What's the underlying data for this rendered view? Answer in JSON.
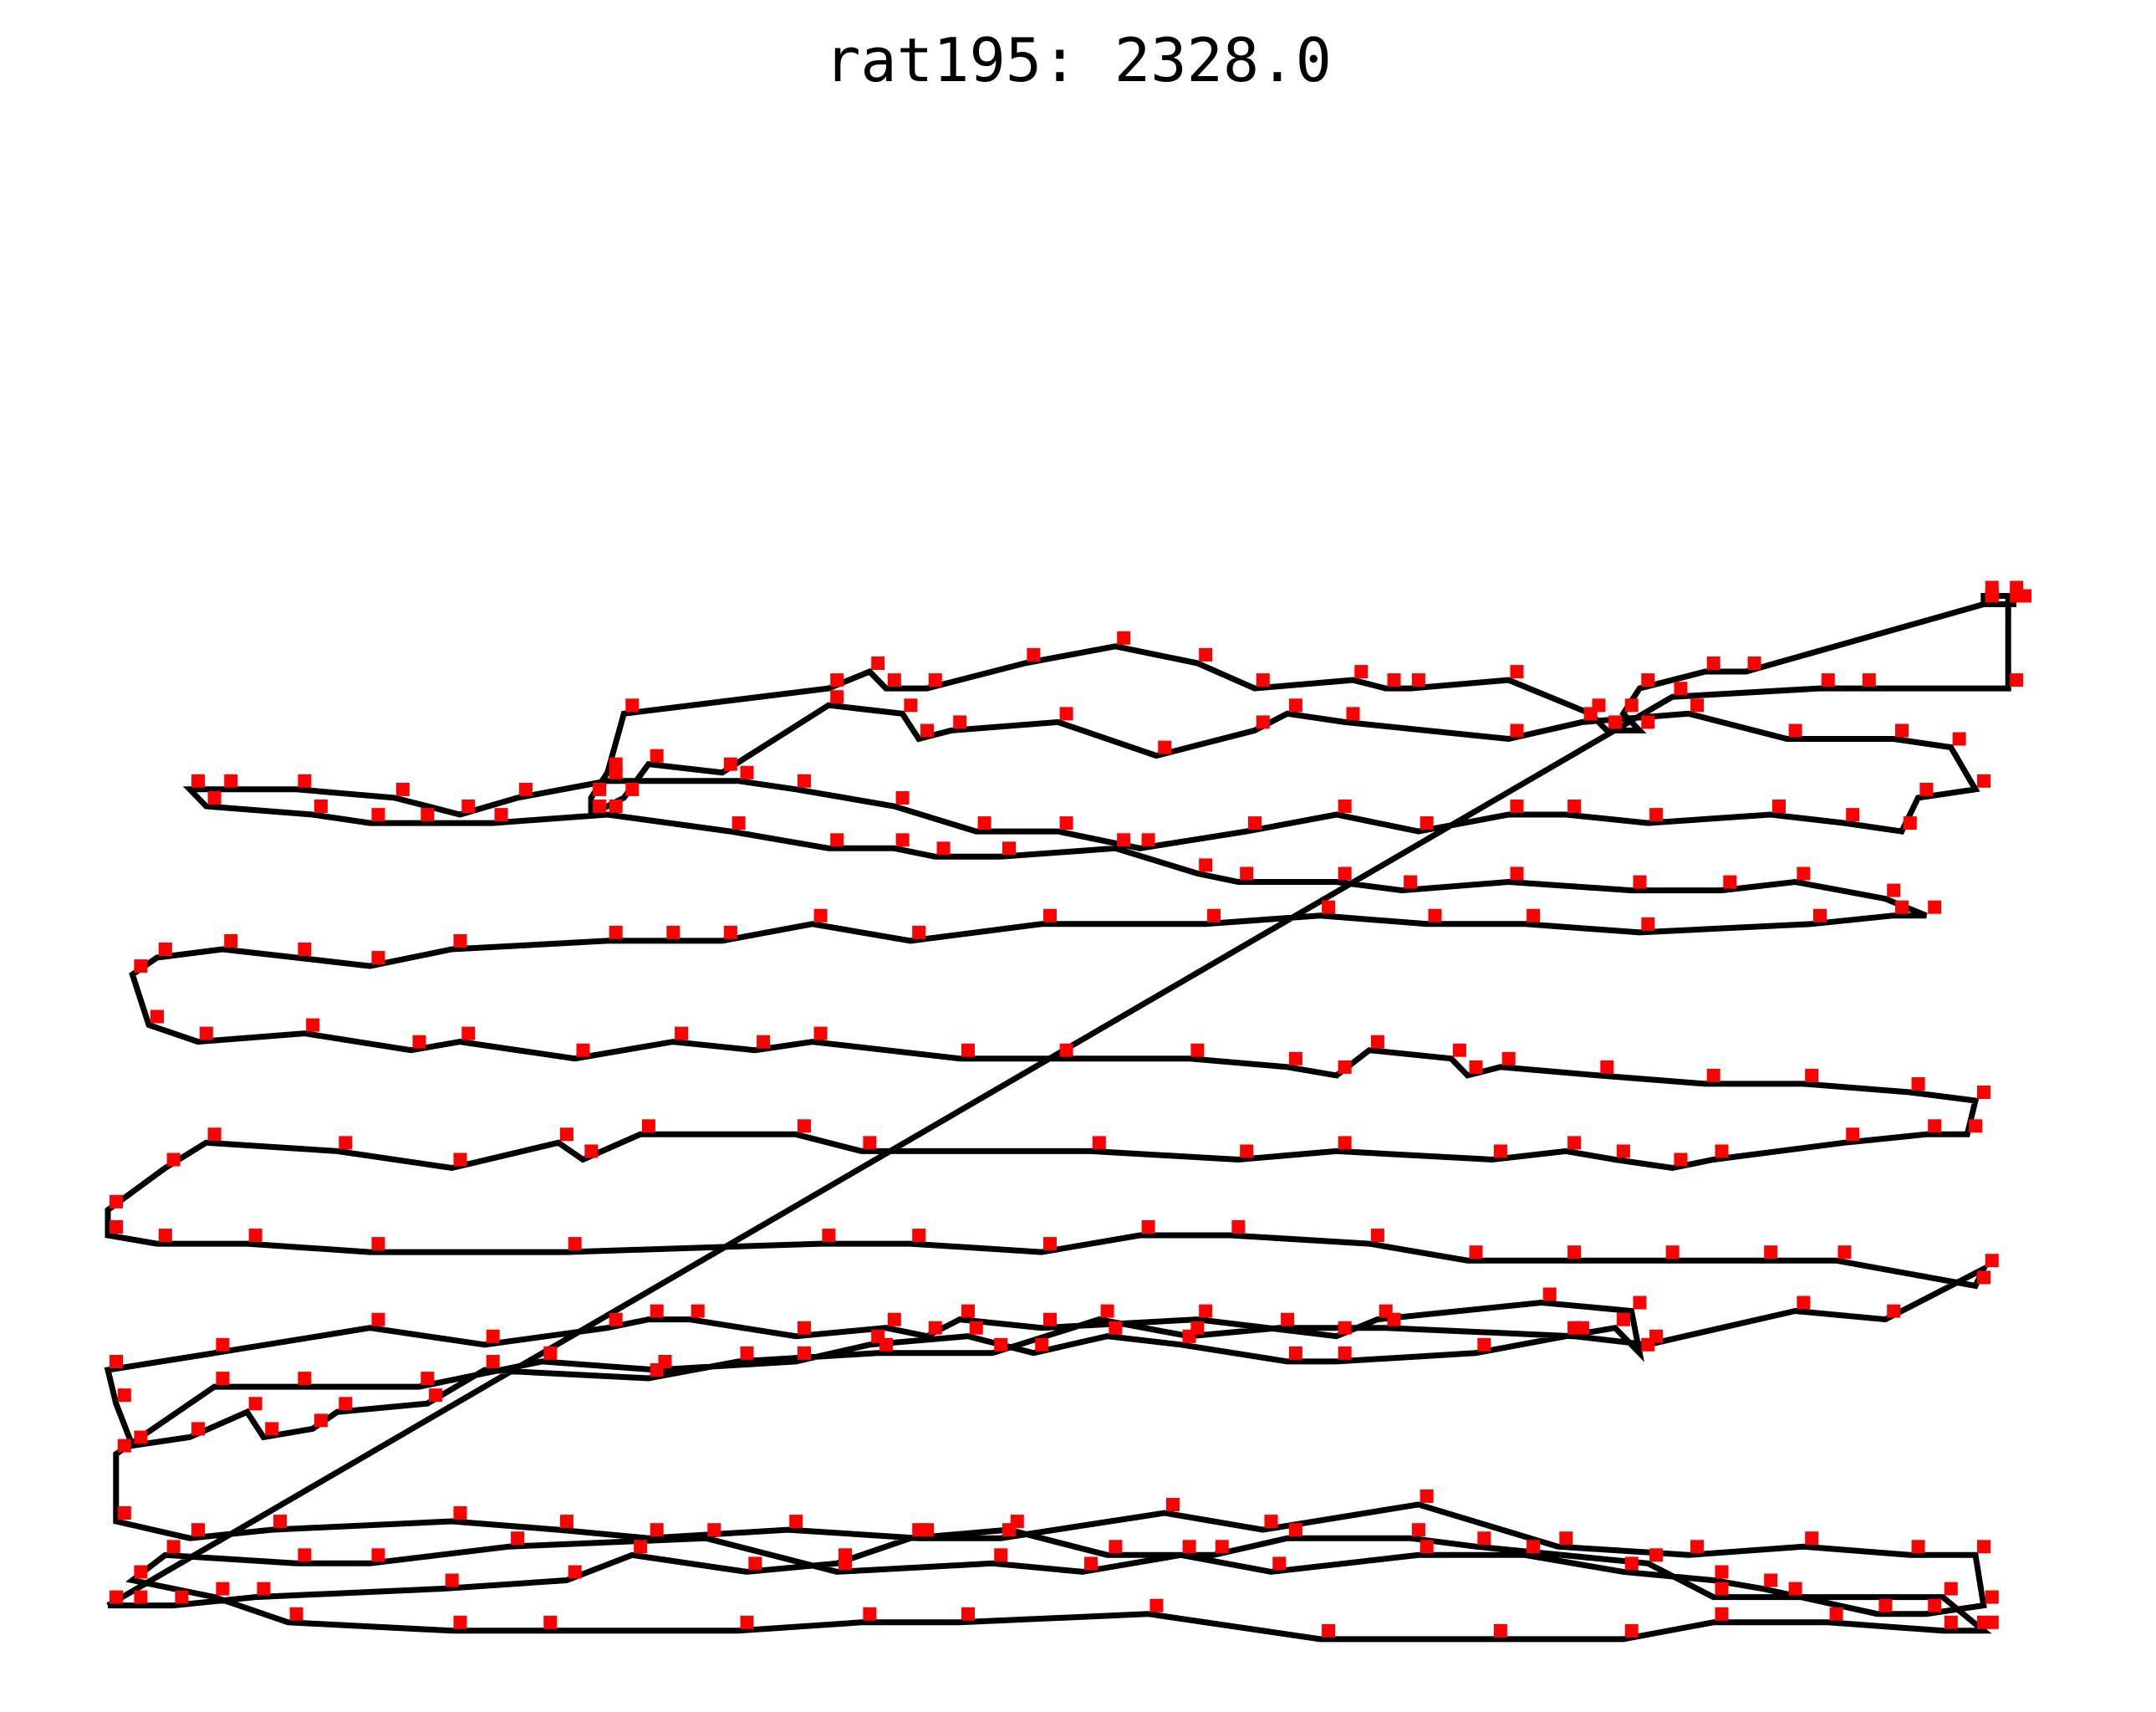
{
  "chart_data": {
    "type": "scatter",
    "title": "rat195: 2328.0",
    "xlim": [
      0,
      233
    ],
    "ylim": [
      0,
      167
    ],
    "grid": false,
    "colors": {
      "city": "#ff0000",
      "tour": "#000000"
    },
    "tour": [
      [
        5,
        6
      ],
      [
        196,
        114
      ],
      [
        214,
        115
      ],
      [
        219,
        115
      ],
      [
        237,
        115
      ],
      [
        237,
        126
      ],
      [
        234,
        126
      ],
      [
        234,
        125
      ],
      [
        237,
        125
      ],
      [
        238,
        125
      ],
      [
        234,
        125
      ],
      [
        205,
        117
      ],
      [
        200,
        117
      ],
      [
        192,
        115
      ],
      [
        190,
        112
      ],
      [
        192,
        110
      ],
      [
        188,
        110
      ],
      [
        186,
        112
      ],
      [
        176,
        116
      ],
      [
        164,
        115
      ],
      [
        161,
        115
      ],
      [
        157,
        116
      ],
      [
        145,
        115
      ],
      [
        138,
        118
      ],
      [
        128,
        120
      ],
      [
        117,
        118
      ],
      [
        105,
        115
      ],
      [
        100,
        115
      ],
      [
        98,
        117
      ],
      [
        93,
        115
      ],
      [
        68,
        112
      ],
      [
        66,
        105
      ],
      [
        64,
        102
      ],
      [
        64,
        100
      ],
      [
        68,
        102
      ],
      [
        71,
        106
      ],
      [
        80,
        105
      ],
      [
        93,
        113
      ],
      [
        102,
        112
      ],
      [
        104,
        109
      ],
      [
        108,
        110
      ],
      [
        121,
        111
      ],
      [
        133,
        107
      ],
      [
        145,
        110
      ],
      [
        149,
        112
      ],
      [
        156,
        111
      ],
      [
        176,
        109
      ],
      [
        185,
        111
      ],
      [
        198,
        112
      ],
      [
        210,
        109
      ],
      [
        223,
        109
      ],
      [
        230,
        108
      ],
      [
        233,
        103
      ],
      [
        226,
        102
      ],
      [
        224,
        98
      ],
      [
        217,
        99
      ],
      [
        208,
        100
      ],
      [
        193,
        99
      ],
      [
        183,
        100
      ],
      [
        176,
        100
      ],
      [
        165,
        98
      ],
      [
        155,
        100
      ],
      [
        144,
        98
      ],
      [
        131,
        96
      ],
      [
        121,
        98
      ],
      [
        111,
        98
      ],
      [
        101,
        101
      ],
      [
        89,
        103
      ],
      [
        82,
        104
      ],
      [
        66,
        104
      ],
      [
        55,
        102
      ],
      [
        48,
        100
      ],
      [
        40,
        102
      ],
      [
        28,
        103
      ],
      [
        19,
        103
      ],
      [
        15,
        103
      ],
      [
        17,
        101
      ],
      [
        30,
        100
      ],
      [
        37,
        99
      ],
      [
        43,
        99
      ],
      [
        52,
        99
      ],
      [
        66,
        100
      ],
      [
        81,
        98
      ],
      [
        93,
        96
      ],
      [
        101,
        96
      ],
      [
        106,
        95
      ],
      [
        114,
        95
      ],
      [
        128,
        96
      ],
      [
        138,
        93
      ],
      [
        143,
        92
      ],
      [
        155,
        92
      ],
      [
        163,
        91
      ],
      [
        176,
        92
      ],
      [
        191,
        91
      ],
      [
        202,
        91
      ],
      [
        211,
        92
      ],
      [
        222,
        90
      ],
      [
        227,
        88
      ],
      [
        223,
        88
      ],
      [
        213,
        87
      ],
      [
        192,
        86
      ],
      [
        178,
        87
      ],
      [
        166,
        87
      ],
      [
        153,
        88
      ],
      [
        139,
        87
      ],
      [
        119,
        87
      ],
      [
        103,
        85
      ],
      [
        91,
        87
      ],
      [
        80,
        85
      ],
      [
        73,
        85
      ],
      [
        66,
        85
      ],
      [
        47,
        84
      ],
      [
        37,
        82
      ],
      [
        28,
        83
      ],
      [
        19,
        84
      ],
      [
        11,
        83
      ],
      [
        8,
        81
      ],
      [
        10,
        75
      ],
      [
        16,
        73
      ],
      [
        29,
        74
      ],
      [
        42,
        72
      ],
      [
        48,
        73
      ],
      [
        62,
        71
      ],
      [
        74,
        73
      ],
      [
        84,
        72
      ],
      [
        91,
        73
      ],
      [
        109,
        71
      ],
      [
        121,
        71
      ],
      [
        137,
        71
      ],
      [
        149,
        70
      ],
      [
        155,
        69
      ],
      [
        159,
        72
      ],
      [
        169,
        71
      ],
      [
        171,
        69
      ],
      [
        175,
        70
      ],
      [
        187,
        69
      ],
      [
        200,
        68
      ],
      [
        212,
        68
      ],
      [
        225,
        67
      ],
      [
        233,
        66
      ],
      [
        232,
        62
      ],
      [
        227,
        62
      ],
      [
        217,
        61
      ],
      [
        201,
        59
      ],
      [
        196,
        58
      ],
      [
        189,
        59
      ],
      [
        183,
        60
      ],
      [
        174,
        59
      ],
      [
        155,
        60
      ],
      [
        143,
        59
      ],
      [
        125,
        60
      ],
      [
        97,
        60
      ],
      [
        89,
        62
      ],
      [
        70,
        62
      ],
      [
        63,
        59
      ],
      [
        60,
        61
      ],
      [
        47,
        58
      ],
      [
        33,
        60
      ],
      [
        17,
        61
      ],
      [
        12,
        58
      ],
      [
        5,
        53
      ],
      [
        5,
        50
      ],
      [
        11,
        49
      ],
      [
        22,
        49
      ],
      [
        37,
        48
      ],
      [
        61,
        48
      ],
      [
        92,
        49
      ],
      [
        103,
        49
      ],
      [
        119,
        48
      ],
      [
        131,
        50
      ],
      [
        142,
        50
      ],
      [
        159,
        49
      ],
      [
        171,
        47
      ],
      [
        183,
        47
      ],
      [
        195,
        47
      ],
      [
        207,
        47
      ],
      [
        216,
        47
      ],
      [
        233,
        44
      ],
      [
        234,
        46
      ],
      [
        222,
        40
      ],
      [
        211,
        41
      ],
      [
        193,
        37
      ],
      [
        184,
        38
      ],
      [
        161,
        39
      ],
      [
        148,
        39
      ],
      [
        137,
        38
      ],
      [
        126,
        40
      ],
      [
        113,
        36
      ],
      [
        99,
        36
      ],
      [
        82,
        35
      ],
      [
        71,
        33
      ],
      [
        51,
        34
      ],
      [
        44,
        30
      ],
      [
        33,
        29
      ],
      [
        30,
        27
      ],
      [
        24,
        26
      ],
      [
        22,
        29
      ],
      [
        15,
        26
      ],
      [
        8,
        25
      ],
      [
        6,
        30
      ],
      [
        5,
        34
      ],
      [
        18,
        36
      ],
      [
        37,
        39
      ],
      [
        51,
        37
      ],
      [
        66,
        39
      ],
      [
        71,
        40
      ],
      [
        76,
        40
      ],
      [
        89,
        38
      ],
      [
        100,
        39
      ],
      [
        105,
        38
      ],
      [
        109,
        40
      ],
      [
        119,
        39
      ],
      [
        138,
        40
      ],
      [
        155,
        38
      ],
      [
        160,
        40
      ],
      [
        180,
        42
      ],
      [
        191,
        41
      ],
      [
        192,
        36
      ],
      [
        189,
        39
      ],
      [
        183,
        38
      ],
      [
        172,
        36
      ],
      [
        155,
        35
      ],
      [
        149,
        35
      ],
      [
        136,
        37
      ],
      [
        127,
        38
      ],
      [
        118,
        36
      ],
      [
        110,
        38
      ],
      [
        98,
        37
      ],
      [
        89,
        35
      ],
      [
        72,
        34
      ],
      [
        58,
        35
      ],
      [
        43,
        32
      ],
      [
        28,
        32
      ],
      [
        18,
        32
      ],
      [
        6,
        24
      ],
      [
        6,
        16
      ],
      [
        15,
        14
      ],
      [
        25,
        15
      ],
      [
        47,
        16
      ],
      [
        60,
        15
      ],
      [
        71,
        14
      ],
      [
        88,
        15
      ],
      [
        104,
        14
      ],
      [
        114,
        14
      ],
      [
        134,
        17
      ],
      [
        146,
        15
      ],
      [
        165,
        18
      ],
      [
        182,
        13
      ],
      [
        198,
        12
      ],
      [
        212,
        13
      ],
      [
        225,
        12
      ],
      [
        233,
        12
      ],
      [
        234,
        6
      ],
      [
        227,
        5
      ],
      [
        221,
        5
      ],
      [
        207,
        8
      ],
      [
        201,
        9
      ],
      [
        190,
        10
      ],
      [
        178,
        12
      ],
      [
        165,
        12
      ],
      [
        147,
        10
      ],
      [
        136,
        12
      ],
      [
        124,
        10
      ],
      [
        113,
        11
      ],
      [
        94,
        10
      ],
      [
        78,
        14
      ],
      [
        54,
        13
      ],
      [
        37,
        11
      ],
      [
        28,
        11
      ],
      [
        12,
        12
      ],
      [
        8,
        9
      ],
      [
        18,
        7
      ],
      [
        27,
        4
      ],
      [
        47,
        3
      ],
      [
        58,
        3
      ],
      [
        82,
        3
      ],
      [
        97,
        4
      ],
      [
        109,
        4
      ],
      [
        132,
        5
      ],
      [
        153,
        2
      ],
      [
        174,
        2
      ],
      [
        190,
        2
      ],
      [
        201,
        4
      ],
      [
        215,
        4
      ],
      [
        229,
        3
      ],
      [
        233,
        3
      ],
      [
        234,
        3
      ],
      [
        229,
        7
      ],
      [
        210,
        7
      ],
      [
        201,
        7
      ],
      [
        193,
        11
      ],
      [
        172,
        13
      ],
      [
        164,
        14
      ],
      [
        149,
        14
      ],
      [
        140,
        12
      ],
      [
        127,
        12
      ],
      [
        115,
        15
      ],
      [
        103,
        14
      ],
      [
        94,
        11
      ],
      [
        83,
        10
      ],
      [
        69,
        12
      ],
      [
        61,
        9
      ],
      [
        46,
        8
      ],
      [
        23,
        7
      ],
      [
        13,
        6
      ],
      [
        8,
        6
      ]
    ]
  }
}
